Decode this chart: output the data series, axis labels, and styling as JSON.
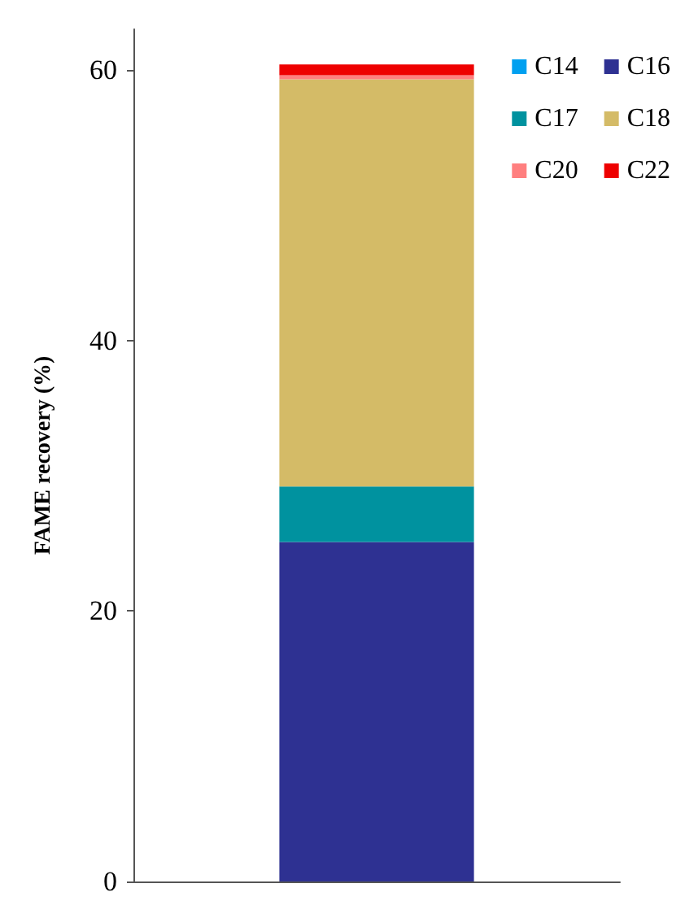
{
  "chart_data": {
    "type": "bar",
    "stacked": true,
    "ylabel": "FAME recovery (%)",
    "categories": [
      null
    ],
    "series": [
      {
        "name": "C14",
        "color": "#00a0f0",
        "values": [
          0
        ]
      },
      {
        "name": "C16",
        "color": "#2e3192",
        "values": [
          25.1
        ]
      },
      {
        "name": "C17",
        "color": "#00929f",
        "values": [
          4.1
        ]
      },
      {
        "name": "C18",
        "color": "#d4bb67",
        "values": [
          30.1
        ]
      },
      {
        "name": "C20",
        "color": "#ff7f7f",
        "values": [
          0.3
        ]
      },
      {
        "name": "C22",
        "color": "#ee0000",
        "values": [
          0.8
        ]
      }
    ],
    "ylim": [
      0,
      63
    ],
    "yticks": [
      0,
      20,
      40,
      60
    ],
    "grid": false,
    "legend": "top right"
  }
}
